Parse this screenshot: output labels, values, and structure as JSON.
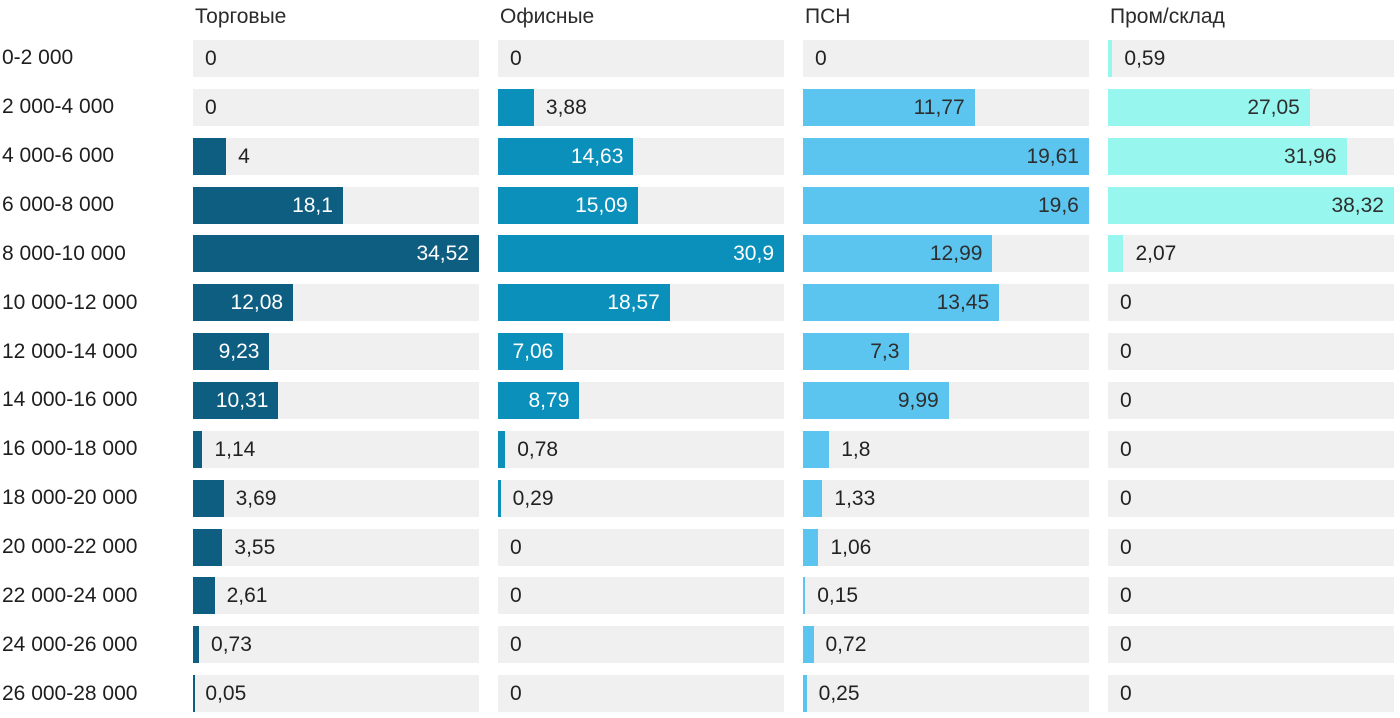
{
  "chart_data": {
    "type": "bar",
    "orientation": "horizontal",
    "title": "",
    "xlabel": "",
    "ylabel": "",
    "legend_position": "column-headers-top",
    "grid": false,
    "scaling": "each-column-scaled-to-its-own-max",
    "track_color": "#f0f0f0",
    "value_color_outside": "#222222",
    "categories": [
      "0-2 000",
      "2 000-4 000",
      "4 000-6 000",
      "6 000-8 000",
      "8 000-10 000",
      "10 000-12 000",
      "12 000-14 000",
      "14 000-16 000",
      "16 000-18 000",
      "18 000-20 000",
      "20 000-22 000",
      "22 000-24 000",
      "24 000-26 000",
      "26 000-28 000"
    ],
    "series": [
      {
        "name": "Торговые",
        "color": "#0e5e81",
        "value_color_inside": "#ffffff",
        "values": [
          0,
          0,
          4,
          18.1,
          34.52,
          12.08,
          9.23,
          10.31,
          1.14,
          3.69,
          3.55,
          2.61,
          0.73,
          0.05
        ],
        "labels": [
          "0",
          "0",
          "4",
          "18,1",
          "34,52",
          "12,08",
          "9,23",
          "10,31",
          "1,14",
          "3,69",
          "3,55",
          "2,61",
          "0,73",
          "0,05"
        ]
      },
      {
        "name": "Офисные",
        "color": "#0b90bc",
        "value_color_inside": "#ffffff",
        "values": [
          0,
          3.88,
          14.63,
          15.09,
          30.9,
          18.57,
          7.06,
          8.79,
          0.78,
          0.29,
          0,
          0,
          0,
          0
        ],
        "labels": [
          "0",
          "3,88",
          "14,63",
          "15,09",
          "30,9",
          "18,57",
          "7,06",
          "8,79",
          "0,78",
          "0,29",
          "0",
          "0",
          "0",
          "0"
        ]
      },
      {
        "name": "ПСН",
        "color": "#5bc5ef",
        "value_color_inside": "#2e2e2e",
        "values": [
          0,
          11.77,
          19.61,
          19.6,
          12.99,
          13.45,
          7.3,
          9.99,
          1.8,
          1.33,
          1.06,
          0.15,
          0.72,
          0.25
        ],
        "labels": [
          "0",
          "11,77",
          "19,61",
          "19,6",
          "12,99",
          "13,45",
          "7,3",
          "9,99",
          "1,8",
          "1,33",
          "1,06",
          "0,15",
          "0,72",
          "0,25"
        ]
      },
      {
        "name": "Пром/склад",
        "color": "#97f7ef",
        "value_color_inside": "#2e2e2e",
        "values": [
          0.59,
          27.05,
          31.96,
          38.32,
          2.07,
          0,
          0,
          0,
          0,
          0,
          0,
          0,
          0,
          0
        ],
        "labels": [
          "0,59",
          "27,05",
          "31,96",
          "38,32",
          "2,07",
          "0",
          "0",
          "0",
          "0",
          "0",
          "0",
          "0",
          "0",
          "0"
        ]
      }
    ]
  }
}
